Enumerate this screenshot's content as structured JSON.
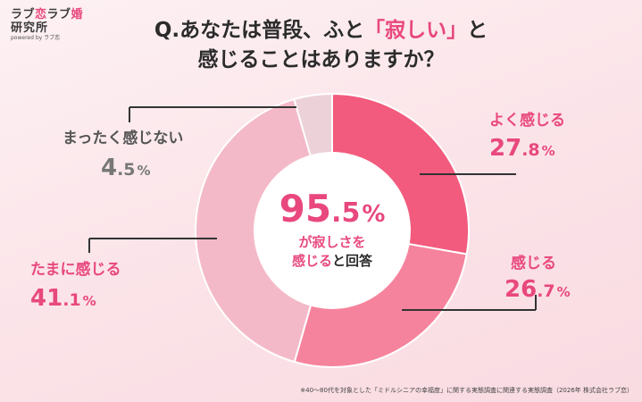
{
  "logo": {
    "line1a": "ラブ",
    "line1b": "恋",
    "line1c": "ラブ",
    "line1d": "婚",
    "line2": "研究所",
    "line3": "powered by ラブ恋"
  },
  "title": {
    "line1_prefix": "Q.あなたは普段、ふと",
    "line1_highlight": "「寂しい」",
    "line1_suffix": "と",
    "line2": "感じることはありますか？"
  },
  "chart_data": {
    "type": "pie",
    "donut": true,
    "categories": [
      "よく感じる",
      "感じる",
      "たまに感じる",
      "まったく感じない"
    ],
    "values": [
      27.8,
      26.7,
      41.1,
      4.5
    ],
    "unit": "%",
    "colors": [
      "#f25b7d",
      "#f6839d",
      "#f4b9c8",
      "#ecd2d8"
    ],
    "label_colors": [
      "#e8487e",
      "#e8487e",
      "#e8487e",
      "#777777"
    ],
    "center": {
      "value": "95.5",
      "unit": "%",
      "line1_highlight": "が寂しさを",
      "line2_highlight": "感じる",
      "line2_suffix": "と回答"
    }
  },
  "footnote": "※40〜80代を対象とした「ミドルシニアの幸福度」に関する実態調査に関連する実態調査（2026年 株式会社ラブ恋）"
}
